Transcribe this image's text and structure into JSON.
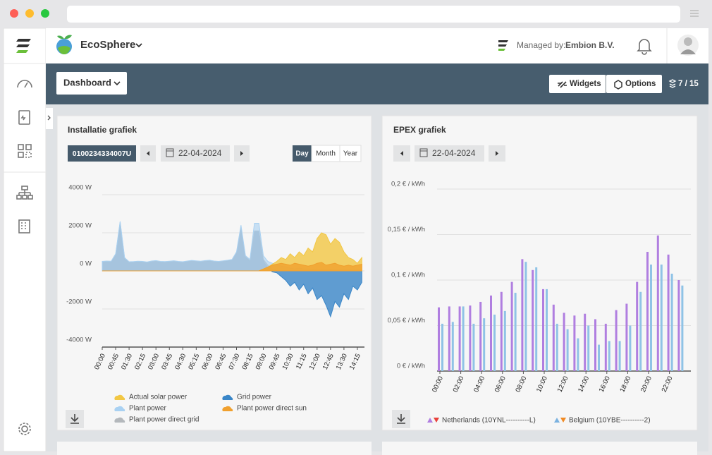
{
  "header": {
    "app_name": "EcoSphere",
    "managed_by_label": "Managed by:",
    "managed_by": "Embion B.V."
  },
  "toolbar": {
    "dashboard": "Dashboard",
    "widgets": "Widgets",
    "options": "Options",
    "page_count": "7 / 15"
  },
  "chart_data": [
    {
      "type": "area",
      "title": "Installatie grafiek",
      "device": "0100234334007U",
      "date": "22-04-2024",
      "periods": [
        "Day",
        "Month",
        "Year"
      ],
      "categories": [
        "00:00",
        null,
        null,
        "00:45",
        null,
        null,
        "01:30",
        null,
        null,
        "02:15",
        null,
        null,
        "03:00",
        null,
        null,
        "03:45",
        null,
        null,
        "04:30",
        null,
        null,
        "05:15",
        null,
        null,
        "06:00",
        null,
        null,
        "06:45",
        null,
        null,
        "07:30",
        null,
        null,
        "08:15",
        null,
        null,
        "09:00",
        null,
        null,
        "09:45",
        null,
        null,
        "10:30",
        null,
        null,
        "11:15",
        null,
        null,
        "12:00",
        null,
        null,
        "12:45",
        null,
        null,
        "13:30",
        null,
        null,
        "14:15",
        null
      ],
      "ylim": [
        -4000,
        4000
      ],
      "yticks": [
        {
          "value": 4000,
          "label": "4000 W"
        },
        {
          "value": 2000,
          "label": "2000 W"
        },
        {
          "value": 0,
          "label": "0 W"
        },
        {
          "value": -2000,
          "label": "-2000 W"
        },
        {
          "value": -4000,
          "label": "-4000 W"
        }
      ],
      "grid": true,
      "series": [
        {
          "name": "Actual solar power",
          "color": "#f2c744",
          "values": [
            0,
            0,
            0,
            0,
            0,
            0,
            0,
            0,
            0,
            0,
            0,
            0,
            0,
            0,
            0,
            0,
            0,
            0,
            0,
            0,
            0,
            0,
            0,
            0,
            0,
            0,
            0,
            0,
            0,
            0,
            0,
            0,
            0,
            0,
            0,
            0,
            100,
            200,
            350,
            500,
            700,
            600,
            900,
            700,
            1000,
            800,
            1200,
            1000,
            1700,
            2000,
            1900,
            1400,
            1700,
            1500,
            1000,
            700,
            600,
            400,
            700
          ]
        },
        {
          "name": "Grid power",
          "color": "#3a86c8",
          "values": [
            450,
            460,
            450,
            800,
            2500,
            600,
            440,
            450,
            470,
            460,
            430,
            480,
            500,
            460,
            450,
            470,
            490,
            460,
            440,
            480,
            510,
            490,
            470,
            500,
            520,
            480,
            460,
            490,
            520,
            560,
            900,
            2250,
            700,
            500,
            2050,
            2050,
            500,
            150,
            -50,
            -100,
            -300,
            -500,
            -800,
            -600,
            -1000,
            -700,
            -1200,
            -900,
            -1500,
            -1300,
            -1800,
            -2400,
            -1600,
            -1900,
            -1200,
            -1500,
            -800,
            -1000,
            -600
          ]
        },
        {
          "name": "Plant power",
          "color": "#a9d1f2",
          "values": [
            500,
            520,
            510,
            900,
            2600,
            700,
            480,
            490,
            510,
            500,
            470,
            520,
            540,
            500,
            490,
            510,
            530,
            500,
            480,
            520,
            550,
            530,
            510,
            540,
            560,
            520,
            500,
            530,
            560,
            600,
            1000,
            2400,
            800,
            600,
            2500,
            2500,
            800,
            500,
            400,
            300,
            250,
            200,
            150,
            100,
            150,
            100,
            100,
            80,
            100,
            80,
            60,
            80,
            60,
            50,
            60,
            50,
            40,
            60,
            50
          ]
        },
        {
          "name": "Plant power direct sun",
          "color": "#f0a02e",
          "values": [
            0,
            0,
            0,
            0,
            0,
            0,
            0,
            0,
            0,
            0,
            0,
            0,
            0,
            0,
            0,
            0,
            0,
            0,
            0,
            0,
            0,
            0,
            0,
            0,
            0,
            0,
            0,
            0,
            0,
            0,
            0,
            0,
            0,
            0,
            0,
            0,
            100,
            200,
            300,
            350,
            400,
            350,
            300,
            400,
            350,
            300,
            250,
            300,
            400,
            450,
            300,
            350,
            400,
            300,
            250,
            300,
            250,
            300,
            350
          ]
        },
        {
          "name": "Plant power direct grid",
          "color": "#b4b8bc",
          "values": [
            480,
            500,
            490,
            850,
            2550,
            650,
            460,
            470,
            490,
            480,
            450,
            500,
            520,
            480,
            470,
            490,
            510,
            480,
            460,
            500,
            530,
            510,
            490,
            520,
            540,
            500,
            480,
            510,
            540,
            580,
            950,
            2300,
            750,
            550,
            2100,
            2100,
            600,
            300,
            100,
            0,
            0,
            0,
            0,
            0,
            0,
            0,
            0,
            0,
            0,
            0,
            0,
            0,
            0,
            0,
            0,
            0,
            0,
            0,
            0
          ]
        }
      ]
    },
    {
      "type": "bar",
      "title": "EPEX grafiek",
      "date": "22-04-2024",
      "categories": [
        "00:00",
        null,
        "02:00",
        null,
        "04:00",
        null,
        "06:00",
        null,
        "08:00",
        null,
        "10:00",
        null,
        "12:00",
        null,
        "14:00",
        null,
        "16:00",
        null,
        "18:00",
        null,
        "20:00",
        null,
        "22:00",
        null
      ],
      "ylim": [
        0,
        0.2
      ],
      "yticks": [
        {
          "value": 0,
          "label": "0 € / kWh"
        },
        {
          "value": 0.05,
          "label": "0,05 € / kWh"
        },
        {
          "value": 0.1,
          "label": "0,1 € / kWh"
        },
        {
          "value": 0.15,
          "label": "0,15 € / kWh"
        },
        {
          "value": 0.2,
          "label": "0,2 € / kWh"
        }
      ],
      "grid": true,
      "series": [
        {
          "name": "Netherlands (10YNL----------L)",
          "color": "#b07ee0",
          "values": [
            0.07,
            0.071,
            0.071,
            0.072,
            0.076,
            0.083,
            0.087,
            0.098,
            0.123,
            0.111,
            0.09,
            0.073,
            0.064,
            0.061,
            0.063,
            0.057,
            0.052,
            0.067,
            0.074,
            0.098,
            0.131,
            0.149,
            0.128,
            0.1
          ]
        },
        {
          "name": "Belgium (10YBE----------2)",
          "color": "#8fc3e6",
          "values": [
            0.052,
            0.054,
            0.071,
            0.052,
            0.058,
            0.062,
            0.066,
            0.086,
            0.12,
            0.114,
            0.09,
            0.052,
            0.046,
            0.036,
            0.05,
            0.029,
            0.033,
            0.033,
            0.05,
            0.087,
            0.117,
            0.117,
            0.107,
            0.094
          ]
        }
      ]
    }
  ]
}
